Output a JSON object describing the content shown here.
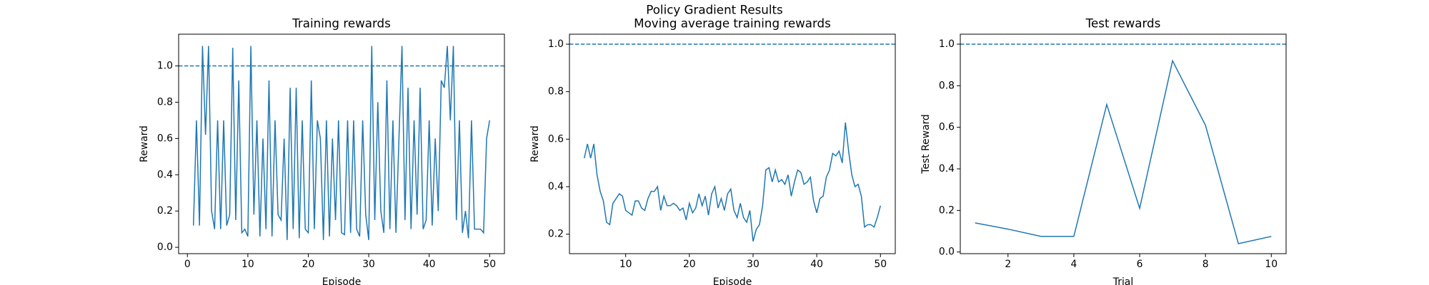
{
  "figure_title": "Policy Gradient Results",
  "chart_data": [
    {
      "type": "line",
      "title": "Training rewards",
      "xlabel": "Episode",
      "ylabel": "Reward",
      "color": "#1f77b4",
      "hline": 1.0,
      "hline_style": "dashed",
      "xlim": [
        -1.45,
        52.45
      ],
      "xticks": [
        0,
        10,
        20,
        30,
        40,
        50
      ],
      "ylim": [
        -0.035,
        1.175
      ],
      "yticks": [
        {
          "value": 0,
          "label": "0.0"
        },
        0.2,
        0.4,
        0.6,
        0.8,
        {
          "value": 1,
          "label": "1.0"
        }
      ],
      "x": [
        1,
        1.5,
        2,
        2.5,
        3,
        3.5,
        4,
        4.5,
        5,
        5.5,
        6,
        6.5,
        7,
        7.5,
        8,
        8.5,
        9,
        9.5,
        10,
        10.5,
        11,
        11.5,
        12,
        12.5,
        13,
        13.5,
        14,
        14.5,
        15,
        15.5,
        16,
        16.5,
        17,
        17.5,
        18,
        18.5,
        19,
        19.5,
        20,
        20.5,
        21,
        21.5,
        22,
        22.5,
        23,
        23.5,
        24,
        24.5,
        25,
        25.5,
        26,
        26.5,
        27,
        27.5,
        28,
        28.5,
        29,
        29.5,
        30,
        30.5,
        31,
        31.5,
        32,
        32.5,
        33,
        33.5,
        34,
        34.5,
        35,
        35.5,
        36,
        36.5,
        37,
        37.5,
        38,
        38.5,
        39,
        39.5,
        40,
        40.5,
        41,
        41.5,
        42,
        42.5,
        43,
        43.5,
        44,
        44.5,
        45,
        45.5,
        46,
        46.5,
        47,
        47.5,
        48,
        48.5,
        49,
        49.5,
        50
      ],
      "values": [
        0.12,
        0.7,
        0.12,
        1.11,
        0.62,
        1.11,
        0.2,
        0.1,
        0.7,
        0.1,
        0.7,
        0.12,
        0.18,
        1.1,
        0.15,
        0.92,
        0.08,
        0.1,
        0.06,
        1.11,
        0.18,
        0.7,
        0.06,
        0.6,
        0.1,
        0.92,
        0.06,
        0.7,
        0.18,
        0.15,
        0.6,
        0.04,
        0.88,
        0.1,
        0.88,
        0.05,
        0.7,
        0.1,
        0.08,
        0.92,
        0.1,
        0.7,
        0.6,
        0.04,
        0.7,
        0.06,
        0.6,
        0.15,
        0.7,
        0.08,
        0.07,
        0.7,
        0.08,
        0.7,
        0.1,
        0.06,
        0.7,
        0.18,
        0.04,
        1.11,
        0.15,
        0.8,
        0.2,
        0.08,
        0.92,
        0.1,
        0.7,
        0.08,
        0.6,
        1.11,
        0.15,
        0.88,
        0.1,
        0.7,
        0.18,
        0.88,
        0.1,
        0.15,
        0.7,
        0.12,
        0.6,
        0.2,
        0.92,
        0.88,
        1.11,
        0.7,
        1.11,
        0.15,
        0.7,
        0.08,
        0.2,
        0.05,
        0.7,
        0.1,
        0.1,
        0.1,
        0.08,
        0.6,
        0.7
      ]
    },
    {
      "type": "line",
      "title": "Moving average training rewards",
      "xlabel": "Episode",
      "ylabel": "Reward",
      "color": "#1f77b4",
      "hline": 1.0,
      "hline_style": "dashed",
      "xlim": [
        1.175,
        52.325
      ],
      "xticks": [
        10,
        20,
        30,
        40,
        50
      ],
      "ylim": [
        0.118,
        1.042
      ],
      "yticks": [
        0.2,
        0.4,
        0.6,
        0.8,
        {
          "value": 1,
          "label": "1.0"
        }
      ],
      "x": [
        3.5,
        4,
        4.5,
        5,
        5.5,
        6,
        6.5,
        7,
        7.5,
        8,
        8.5,
        9,
        9.5,
        10,
        10.5,
        11,
        11.5,
        12,
        12.5,
        13,
        13.5,
        14,
        14.5,
        15,
        15.5,
        16,
        16.5,
        17,
        17.5,
        18,
        18.5,
        19,
        19.5,
        20,
        20.5,
        21,
        21.5,
        22,
        22.5,
        23,
        23.5,
        24,
        24.5,
        25,
        25.5,
        26,
        26.5,
        27,
        27.5,
        28,
        28.5,
        29,
        29.5,
        30,
        30.5,
        31,
        31.5,
        32,
        32.5,
        33,
        33.5,
        34,
        34.5,
        35,
        35.5,
        36,
        36.5,
        37,
        37.5,
        38,
        38.5,
        39,
        39.5,
        40,
        40.5,
        41,
        41.5,
        42,
        42.5,
        43,
        43.5,
        44,
        44.5,
        45,
        45.5,
        46,
        46.5,
        47,
        47.5,
        48,
        48.5,
        49,
        49.5,
        50
      ],
      "values": [
        0.52,
        0.58,
        0.52,
        0.58,
        0.45,
        0.38,
        0.34,
        0.25,
        0.24,
        0.33,
        0.35,
        0.37,
        0.36,
        0.3,
        0.29,
        0.28,
        0.34,
        0.34,
        0.31,
        0.3,
        0.35,
        0.38,
        0.38,
        0.4,
        0.3,
        0.36,
        0.32,
        0.32,
        0.33,
        0.32,
        0.3,
        0.31,
        0.26,
        0.33,
        0.29,
        0.31,
        0.37,
        0.32,
        0.36,
        0.28,
        0.37,
        0.4,
        0.31,
        0.35,
        0.3,
        0.37,
        0.39,
        0.3,
        0.27,
        0.33,
        0.27,
        0.25,
        0.3,
        0.17,
        0.22,
        0.24,
        0.32,
        0.47,
        0.48,
        0.42,
        0.47,
        0.42,
        0.43,
        0.41,
        0.45,
        0.36,
        0.42,
        0.47,
        0.46,
        0.41,
        0.42,
        0.44,
        0.34,
        0.29,
        0.35,
        0.36,
        0.44,
        0.47,
        0.54,
        0.53,
        0.55,
        0.5,
        0.67,
        0.55,
        0.45,
        0.4,
        0.41,
        0.36,
        0.23,
        0.24,
        0.24,
        0.23,
        0.27,
        0.32
      ]
    },
    {
      "type": "line",
      "title": "Test rewards",
      "xlabel": "Trial",
      "ylabel": "Test Reward",
      "color": "#1f77b4",
      "hline": 1.0,
      "hline_style": "dashed",
      "xlim": [
        0.55,
        10.45
      ],
      "xticks": [
        2,
        4,
        6,
        8,
        10
      ],
      "ylim": [
        -0.008,
        1.048
      ],
      "yticks": [
        {
          "value": 0,
          "label": "0.0"
        },
        0.2,
        0.4,
        0.6,
        0.8,
        {
          "value": 1,
          "label": "1.0"
        }
      ],
      "x": [
        1,
        2,
        3,
        4,
        5,
        6,
        7,
        8,
        9,
        10
      ],
      "values": [
        0.14,
        0.11,
        0.075,
        0.075,
        0.71,
        0.21,
        0.92,
        0.61,
        0.04,
        0.075
      ]
    }
  ]
}
